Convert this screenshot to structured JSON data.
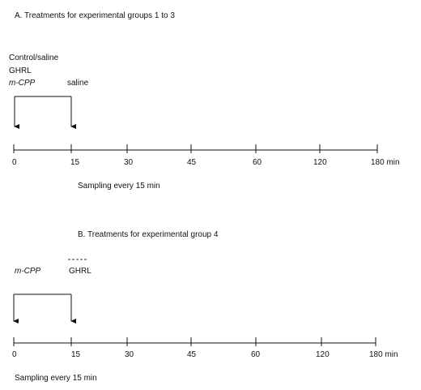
{
  "panel_a": {
    "title": "A. Treatments for experimental groups 1 to 3",
    "treatments": [
      "Control/saline",
      "GHRL",
      "m-CPP"
    ],
    "second_injection": "saline",
    "ticks": [
      "0",
      "15",
      "30",
      "45",
      "60",
      "120",
      "180 min"
    ],
    "sampling": "Sampling every 15 min"
  },
  "panel_b": {
    "title": "B. Treatments for experimental group 4",
    "first_injection": "m-CPP",
    "second_injection": "GHRL",
    "ticks": [
      "0",
      "15",
      "30",
      "45",
      "60",
      "120",
      "180 min"
    ],
    "sampling": "Sampling every 15 min"
  }
}
